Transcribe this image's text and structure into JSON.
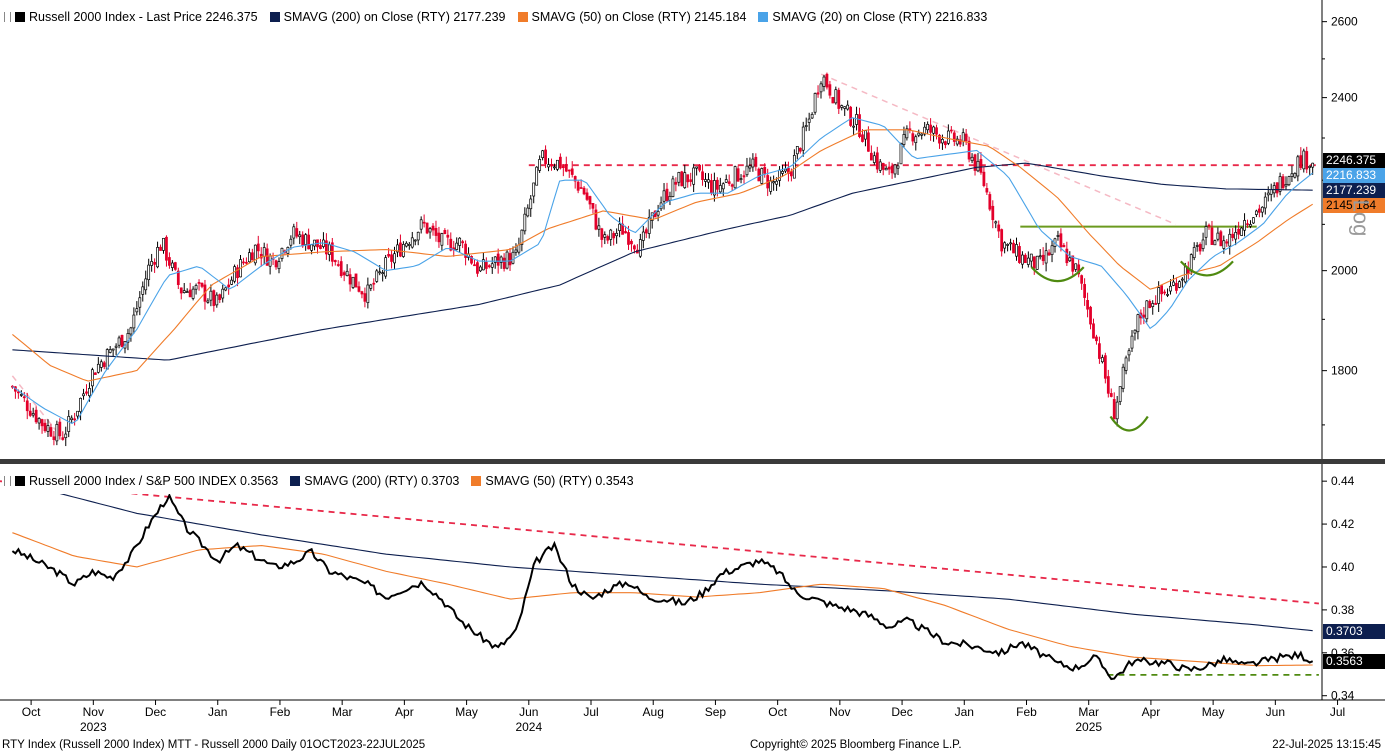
{
  "top_panel": {
    "legend": [
      {
        "label": "Russell 2000 Index - Last Price 2246.375",
        "color": "#000000"
      },
      {
        "label": "SMAVG (200)  on Close (RTY) 2177.239",
        "color": "#0d1f4f"
      },
      {
        "label": "SMAVG (50)  on Close (RTY) 2145.184",
        "color": "#f07c2a"
      },
      {
        "label": "SMAVG (20)  on Close (RTY) 2216.833",
        "color": "#4aa3e8"
      }
    ],
    "price_badges": [
      {
        "text": "2246.375",
        "bg": "#000000",
        "fg": "#ffffff",
        "value": 2246.375
      },
      {
        "text": "2216.833",
        "bg": "#4aa3e8",
        "fg": "#ffffff",
        "value": 2216.833
      },
      {
        "text": "2177.239",
        "bg": "#0d1f4f",
        "fg": "#ffffff",
        "value": 2177.239
      },
      {
        "text": "2145.184",
        "bg": "#f07c2a",
        "fg": "#000000",
        "value": 2145.184
      }
    ],
    "scale_label": "Log"
  },
  "bottom_panel": {
    "legend": [
      {
        "label": "Russell 2000 Index / S&P 500 INDEX 0.3563",
        "color": "#000000"
      },
      {
        "label": "SMAVG (200)  (RTY) 0.3703",
        "color": "#0d1f4f"
      },
      {
        "label": "SMAVG (50)  (RTY) 0.3543",
        "color": "#f07c2a"
      }
    ],
    "value_badges": [
      {
        "text": "0.3703",
        "bg": "#0d1f4f",
        "fg": "#ffffff",
        "value": 0.3703
      },
      {
        "text": "0.3563",
        "bg": "#000000",
        "fg": "#ffffff",
        "value": 0.3563
      }
    ]
  },
  "footer": {
    "left": "RTY Index (Russell 2000 Index) MTT - Russell 2000  Daily 01OCT2023-22JUL2025",
    "center": "Copyright© 2025 Bloomberg Finance L.P.",
    "right": "22-Jul-2025 13:15:45"
  },
  "colors": {
    "up_candle": "#ffffff",
    "down_candle": "#e3002b",
    "resistance": "#e8294a",
    "trendline_pink": "#f5b9c4",
    "neckline": "#6b9a1f",
    "pattern": "#4f8a10"
  },
  "chart_data": [
    {
      "type": "candlestick",
      "title": "",
      "y_scale": "log",
      "ylim": [
        1640,
        2660
      ],
      "yticks": [
        1800,
        2000,
        2400,
        2600
      ],
      "ytick_labels": [
        "1800",
        "2000",
        "2400",
        "2600"
      ],
      "xticks": [
        "Oct",
        "Nov",
        "Dec",
        "Jan",
        "Feb",
        "Mar",
        "Apr",
        "May",
        "Jun",
        "Jul",
        "Aug",
        "Sep",
        "Oct",
        "Nov",
        "Dec",
        "Jan",
        "Feb",
        "Mar",
        "Apr",
        "May",
        "Jun",
        "Jul"
      ],
      "xtick_positions": [
        0.3,
        1.3,
        2.3,
        3.3,
        4.3,
        5.3,
        6.3,
        7.3,
        8.3,
        9.3,
        10.3,
        11.3,
        12.3,
        13.3,
        14.3,
        15.3,
        16.3,
        17.3,
        18.3,
        19.3,
        20.3,
        21.3
      ],
      "year_labels": [
        {
          "text": "2023",
          "x": 1.3
        },
        {
          "text": "2024",
          "x": 8.3
        },
        {
          "text": "2025",
          "x": 17.3
        }
      ],
      "x_domain": [
        -0.2,
        21.05
      ],
      "series": [
        {
          "name": "Russell 2000 Index",
          "kind": "price",
          "x": [
            0,
            0.5,
            0.8,
            1.0,
            1.3,
            1.6,
            1.9,
            2.2,
            2.4,
            2.7,
            3.0,
            3.3,
            3.6,
            3.9,
            4.2,
            4.5,
            4.8,
            5.1,
            5.4,
            5.7,
            6.0,
            6.3,
            6.6,
            6.9,
            7.2,
            7.5,
            7.8,
            8.1,
            8.5,
            8.8,
            9.2,
            9.5,
            9.8,
            10.1,
            10.4,
            10.7,
            11.0,
            11.3,
            11.6,
            11.9,
            12.2,
            12.5,
            12.8,
            13.0,
            13.3,
            13.6,
            13.9,
            14.1,
            14.4,
            14.7,
            15.0,
            15.3,
            15.6,
            15.9,
            16.2,
            16.5,
            16.8,
            17.1,
            17.4,
            17.7,
            17.9,
            18.1,
            18.3,
            18.6,
            18.9,
            19.2,
            19.5,
            19.8,
            20.1,
            20.4,
            20.7,
            20.9
          ],
          "y": [
            1770,
            1700,
            1680,
            1720,
            1800,
            1840,
            1880,
            2010,
            2060,
            1960,
            1960,
            1930,
            2000,
            2050,
            2020,
            2080,
            2060,
            2040,
            1990,
            1950,
            2010,
            2060,
            2100,
            2060,
            2060,
            2000,
            2020,
            2030,
            2250,
            2240,
            2170,
            2060,
            2090,
            2050,
            2150,
            2200,
            2210,
            2180,
            2210,
            2230,
            2190,
            2220,
            2340,
            2460,
            2380,
            2330,
            2240,
            2210,
            2310,
            2320,
            2300,
            2290,
            2200,
            2060,
            2030,
            2010,
            2060,
            2000,
            1870,
            1720,
            1810,
            1900,
            1940,
            1960,
            2010,
            2080,
            2060,
            2110,
            2140,
            2200,
            2250,
            2246
          ]
        },
        {
          "name": "SMAVG (200)",
          "kind": "line",
          "x": [
            0,
            2.5,
            5.0,
            7.5,
            8.8,
            10.0,
            11.5,
            12.5,
            13.5,
            14.5,
            15.5,
            16.3,
            17.5,
            18.5,
            19.5,
            20.9
          ],
          "y": [
            1840,
            1820,
            1880,
            1930,
            1970,
            2040,
            2090,
            2120,
            2170,
            2200,
            2230,
            2240,
            2210,
            2190,
            2180,
            2177
          ]
        },
        {
          "name": "SMAVG (50)",
          "kind": "line",
          "x": [
            0,
            0.6,
            1.2,
            2.0,
            2.6,
            3.2,
            4.0,
            5.0,
            6.0,
            7.0,
            8.0,
            8.6,
            9.5,
            10.3,
            11.0,
            11.7,
            12.4,
            13.0,
            13.7,
            14.4,
            15.0,
            15.7,
            16.2,
            16.8,
            17.3,
            17.8,
            18.3,
            18.8,
            19.4,
            20.0,
            20.5,
            20.9
          ],
          "y": [
            1870,
            1810,
            1780,
            1800,
            1880,
            1970,
            2030,
            2040,
            2045,
            2030,
            2045,
            2090,
            2130,
            2110,
            2150,
            2170,
            2210,
            2270,
            2320,
            2320,
            2300,
            2280,
            2230,
            2160,
            2080,
            2010,
            1960,
            1990,
            2010,
            2060,
            2110,
            2145
          ]
        },
        {
          "name": "SMAVG (20)",
          "kind": "line",
          "x": [
            0,
            0.5,
            1.0,
            1.5,
            2.0,
            2.5,
            3.0,
            3.5,
            4.0,
            4.5,
            5.0,
            5.5,
            6.0,
            6.5,
            7.0,
            7.5,
            8.0,
            8.5,
            8.8,
            9.2,
            9.6,
            10.0,
            10.5,
            11.0,
            11.5,
            12.0,
            12.5,
            13.0,
            13.5,
            14.0,
            14.5,
            15.0,
            15.5,
            16.0,
            16.5,
            17.0,
            17.5,
            17.9,
            18.3,
            18.6,
            18.9,
            19.3,
            19.7,
            20.1,
            20.5,
            20.9
          ],
          "y": [
            1770,
            1730,
            1700,
            1800,
            1880,
            1990,
            2010,
            1960,
            2010,
            2050,
            2060,
            2040,
            2000,
            2010,
            2050,
            2020,
            2020,
            2060,
            2200,
            2200,
            2120,
            2080,
            2150,
            2170,
            2170,
            2210,
            2230,
            2300,
            2350,
            2330,
            2250,
            2260,
            2270,
            2210,
            2090,
            2030,
            2010,
            1950,
            1880,
            1920,
            1980,
            2030,
            2060,
            2100,
            2170,
            2217
          ]
        },
        {
          "name": "Resistance",
          "kind": "dashed-red",
          "x": [
            8.3,
            21.0
          ],
          "y": [
            2235,
            2235
          ]
        },
        {
          "name": "Downtrend",
          "kind": "dashed-pink",
          "x": [
            13.0,
            18.7
          ],
          "y": [
            2460,
            2100
          ]
        },
        {
          "name": "Downtrend early",
          "kind": "dashed-pink",
          "x": [
            0.0,
            0.7
          ],
          "y": [
            1790,
            1690
          ]
        },
        {
          "name": "Neckline",
          "kind": "solid-green",
          "x": [
            16.2,
            20.0
          ],
          "y": [
            2095,
            2095
          ]
        }
      ],
      "candle_count": 440,
      "candle_seed": 7
    },
    {
      "type": "line",
      "title": "",
      "ylim": [
        0.338,
        0.448
      ],
      "yticks": [
        0.34,
        0.36,
        0.38,
        0.4,
        0.42,
        0.44
      ],
      "ytick_labels": [
        "0.34",
        "0.36",
        "0.38",
        "0.40",
        "0.42",
        "0.44"
      ],
      "x_domain": [
        -0.2,
        21.05
      ],
      "series": [
        {
          "name": "Russell 2000 Index / S&P 500 INDEX",
          "kind": "ratio",
          "x": [
            0,
            0.3,
            0.7,
            1.0,
            1.3,
            1.6,
            1.9,
            2.2,
            2.5,
            2.8,
            3.0,
            3.3,
            3.6,
            3.9,
            4.2,
            4.5,
            4.8,
            5.1,
            5.4,
            5.7,
            6.0,
            6.3,
            6.6,
            6.9,
            7.2,
            7.5,
            7.8,
            8.1,
            8.4,
            8.7,
            9.0,
            9.3,
            9.6,
            9.9,
            10.2,
            10.5,
            10.8,
            11.1,
            11.4,
            11.7,
            12.0,
            12.3,
            12.6,
            12.9,
            13.2,
            13.5,
            13.8,
            14.1,
            14.4,
            14.7,
            15.0,
            15.3,
            15.6,
            15.9,
            16.2,
            16.5,
            16.8,
            17.1,
            17.4,
            17.7,
            18.0,
            18.3,
            18.6,
            18.9,
            19.2,
            19.5,
            19.8,
            20.1,
            20.4,
            20.7,
            20.9
          ],
          "y": [
            0.408,
            0.404,
            0.398,
            0.392,
            0.398,
            0.395,
            0.405,
            0.42,
            0.433,
            0.418,
            0.412,
            0.403,
            0.41,
            0.405,
            0.4,
            0.402,
            0.407,
            0.398,
            0.395,
            0.392,
            0.386,
            0.39,
            0.393,
            0.385,
            0.375,
            0.368,
            0.362,
            0.37,
            0.402,
            0.41,
            0.392,
            0.385,
            0.39,
            0.393,
            0.386,
            0.385,
            0.383,
            0.388,
            0.397,
            0.4,
            0.403,
            0.398,
            0.388,
            0.385,
            0.382,
            0.38,
            0.377,
            0.372,
            0.375,
            0.37,
            0.365,
            0.364,
            0.362,
            0.36,
            0.365,
            0.36,
            0.355,
            0.353,
            0.358,
            0.348,
            0.356,
            0.356,
            0.355,
            0.352,
            0.354,
            0.357,
            0.354,
            0.356,
            0.358,
            0.359,
            0.3563
          ]
        },
        {
          "name": "SMAVG (200)",
          "kind": "line",
          "x": [
            0,
            2,
            4,
            6,
            8,
            10,
            12,
            14,
            16,
            18,
            20,
            20.9
          ],
          "y": [
            0.44,
            0.425,
            0.415,
            0.406,
            0.4,
            0.396,
            0.392,
            0.389,
            0.385,
            0.378,
            0.373,
            0.3703
          ]
        },
        {
          "name": "SMAVG (50)",
          "kind": "line",
          "x": [
            0,
            1,
            2,
            3,
            4,
            5,
            6,
            7,
            8,
            9,
            10,
            11,
            12,
            13,
            14,
            15,
            16,
            17,
            18,
            19,
            20,
            20.9
          ],
          "y": [
            0.416,
            0.405,
            0.4,
            0.408,
            0.41,
            0.406,
            0.398,
            0.392,
            0.385,
            0.388,
            0.388,
            0.386,
            0.388,
            0.392,
            0.39,
            0.382,
            0.371,
            0.363,
            0.358,
            0.356,
            0.354,
            0.3543
          ]
        },
        {
          "name": "Downtrend",
          "kind": "dashed-red",
          "x": [
            -0.2,
            21.0
          ],
          "y": [
            0.44,
            0.383
          ]
        },
        {
          "name": "Support",
          "kind": "dashed-green",
          "x": [
            17.6,
            21.0
          ],
          "y": [
            0.3497,
            0.3497
          ]
        }
      ]
    }
  ]
}
